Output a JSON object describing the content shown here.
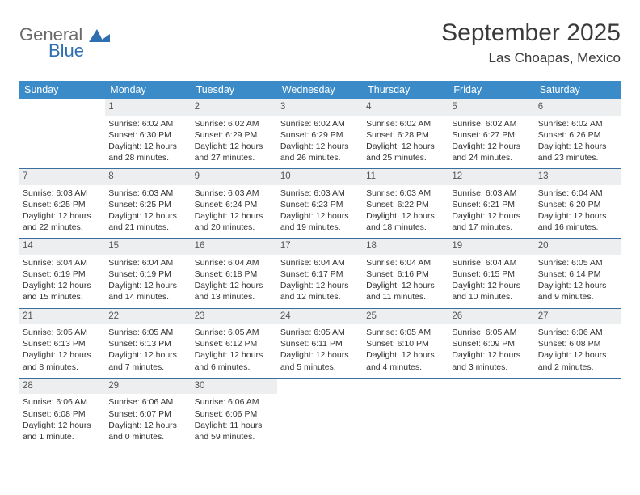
{
  "logo": {
    "text1": "General",
    "text2": "Blue",
    "color1": "#6a6a6a",
    "color2": "#2f6fb0"
  },
  "title": "September 2025",
  "location": "Las Choapas, Mexico",
  "colors": {
    "header_bg": "#3b8bc9",
    "header_text": "#ffffff",
    "daynum_bg": "#eceeef",
    "daynum_text": "#555555",
    "row_border": "#3b6e9e",
    "body_text": "#333333"
  },
  "day_headers": [
    "Sunday",
    "Monday",
    "Tuesday",
    "Wednesday",
    "Thursday",
    "Friday",
    "Saturday"
  ],
  "weeks": [
    [
      {
        "empty": true
      },
      {
        "n": "1",
        "sr": "Sunrise: 6:02 AM",
        "ss": "Sunset: 6:30 PM",
        "dl": "Daylight: 12 hours and 28 minutes."
      },
      {
        "n": "2",
        "sr": "Sunrise: 6:02 AM",
        "ss": "Sunset: 6:29 PM",
        "dl": "Daylight: 12 hours and 27 minutes."
      },
      {
        "n": "3",
        "sr": "Sunrise: 6:02 AM",
        "ss": "Sunset: 6:29 PM",
        "dl": "Daylight: 12 hours and 26 minutes."
      },
      {
        "n": "4",
        "sr": "Sunrise: 6:02 AM",
        "ss": "Sunset: 6:28 PM",
        "dl": "Daylight: 12 hours and 25 minutes."
      },
      {
        "n": "5",
        "sr": "Sunrise: 6:02 AM",
        "ss": "Sunset: 6:27 PM",
        "dl": "Daylight: 12 hours and 24 minutes."
      },
      {
        "n": "6",
        "sr": "Sunrise: 6:02 AM",
        "ss": "Sunset: 6:26 PM",
        "dl": "Daylight: 12 hours and 23 minutes."
      }
    ],
    [
      {
        "n": "7",
        "sr": "Sunrise: 6:03 AM",
        "ss": "Sunset: 6:25 PM",
        "dl": "Daylight: 12 hours and 22 minutes."
      },
      {
        "n": "8",
        "sr": "Sunrise: 6:03 AM",
        "ss": "Sunset: 6:25 PM",
        "dl": "Daylight: 12 hours and 21 minutes."
      },
      {
        "n": "9",
        "sr": "Sunrise: 6:03 AM",
        "ss": "Sunset: 6:24 PM",
        "dl": "Daylight: 12 hours and 20 minutes."
      },
      {
        "n": "10",
        "sr": "Sunrise: 6:03 AM",
        "ss": "Sunset: 6:23 PM",
        "dl": "Daylight: 12 hours and 19 minutes."
      },
      {
        "n": "11",
        "sr": "Sunrise: 6:03 AM",
        "ss": "Sunset: 6:22 PM",
        "dl": "Daylight: 12 hours and 18 minutes."
      },
      {
        "n": "12",
        "sr": "Sunrise: 6:03 AM",
        "ss": "Sunset: 6:21 PM",
        "dl": "Daylight: 12 hours and 17 minutes."
      },
      {
        "n": "13",
        "sr": "Sunrise: 6:04 AM",
        "ss": "Sunset: 6:20 PM",
        "dl": "Daylight: 12 hours and 16 minutes."
      }
    ],
    [
      {
        "n": "14",
        "sr": "Sunrise: 6:04 AM",
        "ss": "Sunset: 6:19 PM",
        "dl": "Daylight: 12 hours and 15 minutes."
      },
      {
        "n": "15",
        "sr": "Sunrise: 6:04 AM",
        "ss": "Sunset: 6:19 PM",
        "dl": "Daylight: 12 hours and 14 minutes."
      },
      {
        "n": "16",
        "sr": "Sunrise: 6:04 AM",
        "ss": "Sunset: 6:18 PM",
        "dl": "Daylight: 12 hours and 13 minutes."
      },
      {
        "n": "17",
        "sr": "Sunrise: 6:04 AM",
        "ss": "Sunset: 6:17 PM",
        "dl": "Daylight: 12 hours and 12 minutes."
      },
      {
        "n": "18",
        "sr": "Sunrise: 6:04 AM",
        "ss": "Sunset: 6:16 PM",
        "dl": "Daylight: 12 hours and 11 minutes."
      },
      {
        "n": "19",
        "sr": "Sunrise: 6:04 AM",
        "ss": "Sunset: 6:15 PM",
        "dl": "Daylight: 12 hours and 10 minutes."
      },
      {
        "n": "20",
        "sr": "Sunrise: 6:05 AM",
        "ss": "Sunset: 6:14 PM",
        "dl": "Daylight: 12 hours and 9 minutes."
      }
    ],
    [
      {
        "n": "21",
        "sr": "Sunrise: 6:05 AM",
        "ss": "Sunset: 6:13 PM",
        "dl": "Daylight: 12 hours and 8 minutes."
      },
      {
        "n": "22",
        "sr": "Sunrise: 6:05 AM",
        "ss": "Sunset: 6:13 PM",
        "dl": "Daylight: 12 hours and 7 minutes."
      },
      {
        "n": "23",
        "sr": "Sunrise: 6:05 AM",
        "ss": "Sunset: 6:12 PM",
        "dl": "Daylight: 12 hours and 6 minutes."
      },
      {
        "n": "24",
        "sr": "Sunrise: 6:05 AM",
        "ss": "Sunset: 6:11 PM",
        "dl": "Daylight: 12 hours and 5 minutes."
      },
      {
        "n": "25",
        "sr": "Sunrise: 6:05 AM",
        "ss": "Sunset: 6:10 PM",
        "dl": "Daylight: 12 hours and 4 minutes."
      },
      {
        "n": "26",
        "sr": "Sunrise: 6:05 AM",
        "ss": "Sunset: 6:09 PM",
        "dl": "Daylight: 12 hours and 3 minutes."
      },
      {
        "n": "27",
        "sr": "Sunrise: 6:06 AM",
        "ss": "Sunset: 6:08 PM",
        "dl": "Daylight: 12 hours and 2 minutes."
      }
    ],
    [
      {
        "n": "28",
        "sr": "Sunrise: 6:06 AM",
        "ss": "Sunset: 6:08 PM",
        "dl": "Daylight: 12 hours and 1 minute."
      },
      {
        "n": "29",
        "sr": "Sunrise: 6:06 AM",
        "ss": "Sunset: 6:07 PM",
        "dl": "Daylight: 12 hours and 0 minutes."
      },
      {
        "n": "30",
        "sr": "Sunrise: 6:06 AM",
        "ss": "Sunset: 6:06 PM",
        "dl": "Daylight: 11 hours and 59 minutes."
      },
      {
        "empty": true
      },
      {
        "empty": true
      },
      {
        "empty": true
      },
      {
        "empty": true
      }
    ]
  ]
}
